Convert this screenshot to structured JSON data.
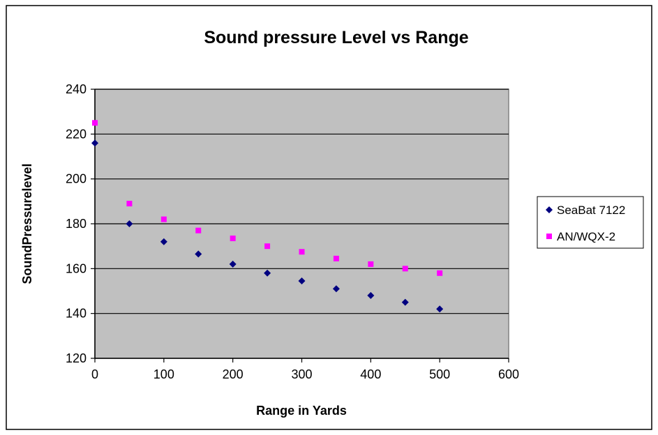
{
  "chart_data": {
    "type": "scatter",
    "title": "Sound pressure Level vs Range",
    "xlabel": "Range in Yards",
    "ylabel": "SoundPressurelevel",
    "xlim": [
      0,
      600
    ],
    "ylim": [
      120,
      240
    ],
    "xticks": [
      "0",
      "100",
      "200",
      "300",
      "400",
      "500",
      "600"
    ],
    "yticks": [
      "120",
      "140",
      "160",
      "180",
      "200",
      "220",
      "240"
    ],
    "grid": "horizontal",
    "legend_position": "right",
    "plot_background": "#c0c0c0",
    "series": [
      {
        "name": "SeaBat 7122",
        "marker": "diamond",
        "color": "#000080",
        "x": [
          0,
          50,
          100,
          150,
          200,
          250,
          300,
          350,
          400,
          450,
          500
        ],
        "y": [
          216,
          180,
          172,
          166.5,
          162,
          158,
          154.5,
          151,
          148,
          145,
          142
        ]
      },
      {
        "name": "AN/WQX-2",
        "marker": "square",
        "color": "#ff00ff",
        "x": [
          0,
          50,
          100,
          150,
          200,
          250,
          300,
          350,
          400,
          450,
          500
        ],
        "y": [
          225,
          189,
          182,
          177,
          173.5,
          170,
          167.5,
          164.5,
          162,
          160,
          158
        ]
      }
    ]
  }
}
